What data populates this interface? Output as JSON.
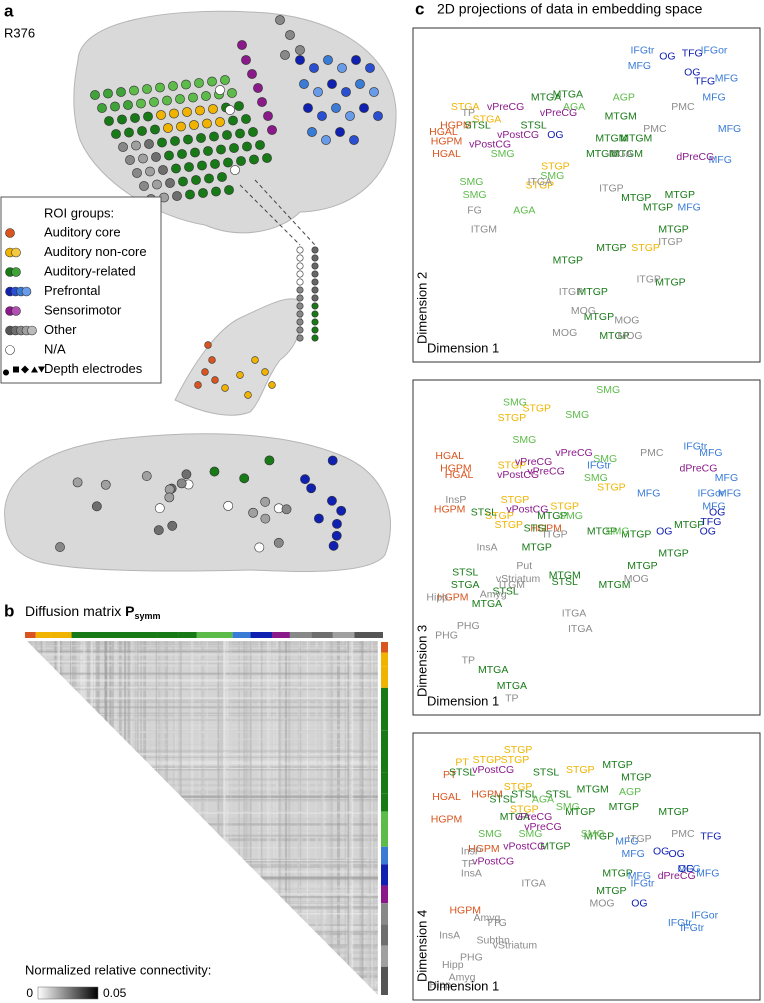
{
  "panel_a": {
    "letter": "a",
    "subject": "R376",
    "legend_title": "ROI groups:",
    "legend": [
      {
        "label": "Auditory core",
        "colors": [
          "#d9541e"
        ]
      },
      {
        "label": "Auditory non-core",
        "colors": [
          "#f0b400",
          "#f5c842"
        ]
      },
      {
        "label": "Auditory-related",
        "colors": [
          "#177a17",
          "#3fa33a"
        ]
      },
      {
        "label": "Prefrontal",
        "colors": [
          "#1020b0",
          "#2a4fd0",
          "#3a7bd5",
          "#6a9be8"
        ]
      },
      {
        "label": "Sensorimotor",
        "colors": [
          "#8a1a8a",
          "#b050b0"
        ]
      },
      {
        "label": "Other",
        "colors": [
          "#555555",
          "#6e6e6e",
          "#888888",
          "#a0a0a0",
          "#bbbbbb"
        ]
      },
      {
        "label": "N/A",
        "colors": [
          "#ffffff"
        ]
      },
      {
        "label": "Depth electrodes",
        "colors": [
          "#000000"
        ]
      }
    ]
  },
  "panel_b": {
    "letter": "b",
    "title": "Diffusion matrix",
    "symbol": "P",
    "subscript": "symm",
    "colorbar_label": "Normalized relative connectivity:",
    "colorbar_ticks": [
      0,
      0.05
    ]
  },
  "panel_c": {
    "letter": "c",
    "title": "2D projections of data in embedding space"
  },
  "chart_data": [
    {
      "type": "scatter",
      "xlabel": "Dimension 1",
      "ylabel": "Dimension 2",
      "xlim": [
        0,
        100
      ],
      "ylim": [
        0,
        100
      ],
      "series": [
        {
          "color": "#d9541e",
          "labels": [
            "HGAL",
            "HGPM",
            "HGAL",
            "HGPM"
          ],
          "x": [
            4,
            5,
            5,
            8
          ],
          "y": [
            70,
            67,
            63,
            72
          ]
        },
        {
          "color": "#f0b400",
          "labels": [
            "STGA",
            "STGP",
            "STGP",
            "STGA",
            "STGP"
          ],
          "x": [
            11,
            35,
            69,
            18,
            40
          ],
          "y": [
            78,
            53,
            33,
            74,
            59
          ]
        },
        {
          "color": "#177a17",
          "labels": [
            "MTGA",
            "MTGM",
            "MTGM",
            "MTGM",
            "MTGP",
            "MTGP",
            "MTGP",
            "MTGP",
            "MTGP",
            "MTGP",
            "MTGP",
            "MTGP",
            "MTGP",
            "STSL",
            "STSL",
            "MTGA",
            "MTGM",
            "MTGM",
            "MTGP"
          ],
          "x": [
            37,
            61,
            63,
            58,
            80,
            73,
            78,
            58,
            44,
            77,
            52,
            54,
            59,
            15,
            33,
            44,
            66,
            55,
            66
          ],
          "y": [
            81,
            75,
            63,
            68,
            50,
            46,
            39,
            33,
            29,
            22,
            19,
            11,
            5,
            72,
            72,
            82,
            68,
            63,
            49
          ]
        },
        {
          "color": "#5dbb4a",
          "labels": [
            "AGA",
            "SMG",
            "SMG",
            "SMG",
            "AGA",
            "AGP",
            "SMG"
          ],
          "x": [
            46,
            13,
            14,
            39,
            30,
            62,
            23
          ],
          "y": [
            78,
            54,
            50,
            56,
            45,
            81,
            63
          ]
        },
        {
          "color": "#3a7bd5",
          "labels": [
            "IFGtr",
            "MFG",
            "MFG",
            "MFG",
            "MFG",
            "MFG",
            "MFG",
            "IFGor"
          ],
          "x": [
            68,
            67,
            91,
            96,
            93,
            83,
            95,
            91
          ],
          "y": [
            96,
            91,
            81,
            71,
            61,
            46,
            87,
            96
          ]
        },
        {
          "color": "#1020b0",
          "labels": [
            "OG",
            "TFG",
            "TFG",
            "OG",
            "OG"
          ],
          "x": [
            76,
            84,
            88,
            84,
            40
          ],
          "y": [
            94,
            95,
            86,
            89,
            69
          ]
        },
        {
          "color": "#8a1a8a",
          "labels": [
            "vPreCG",
            "vPostCG",
            "vPreCG",
            "vPostCG",
            "dPreCG"
          ],
          "x": [
            41,
            19,
            24,
            28,
            85
          ],
          "y": [
            76,
            66,
            78,
            69,
            62
          ]
        },
        {
          "color": "#8c8c8c",
          "labels": [
            "PMC",
            "PMC",
            "FG",
            "ITGM",
            "ITGA",
            "ITGP",
            "ITGP",
            "ITGP",
            "ITGP",
            "MOG",
            "MOG",
            "MOG",
            "MOG",
            "TP",
            "ITGA"
          ],
          "x": [
            81,
            72,
            14,
            17,
            35,
            58,
            77,
            70,
            45,
            49,
            43,
            64,
            63,
            12,
            61
          ],
          "y": [
            78,
            71,
            45,
            39,
            54,
            52,
            35,
            23,
            19,
            13,
            6,
            5,
            10,
            76,
            63
          ]
        }
      ]
    },
    {
      "type": "scatter",
      "xlabel": "Dimension 1",
      "ylabel": "Dimension 3",
      "xlim": [
        0,
        100
      ],
      "ylim": [
        0,
        100
      ],
      "series": [
        {
          "color": "#d9541e",
          "labels": [
            "HGAL",
            "HGPM",
            "HGAL",
            "HGPM",
            "HGPM",
            "HGPM"
          ],
          "x": [
            6,
            8,
            9,
            6,
            7,
            37
          ],
          "y": [
            79,
            75,
            73,
            62,
            34,
            56
          ]
        },
        {
          "color": "#f0b400",
          "labels": [
            "STGP",
            "STGP",
            "STGP",
            "STGP",
            "STGP",
            "STGP",
            "STGP",
            "STGP"
          ],
          "x": [
            34,
            26,
            26,
            27,
            58,
            43,
            25,
            22
          ],
          "y": [
            94,
            91,
            76,
            65,
            69,
            63,
            57,
            60
          ]
        },
        {
          "color": "#177a17",
          "labels": [
            "STSL",
            "STSL",
            "STSL",
            "STGA",
            "STSL",
            "MTGA",
            "MTGA",
            "MTGA",
            "MTGP",
            "MTGP",
            "MTGP",
            "MTGM",
            "MTGM",
            "STSL",
            "MTGP",
            "MTGP",
            "MTGP",
            "MTGP"
          ],
          "x": [
            17,
            34,
            11,
            11,
            24,
            18,
            26,
            20,
            55,
            66,
            78,
            59,
            43,
            43,
            68,
            83,
            34,
            39
          ],
          "y": [
            61,
            56,
            42,
            38,
            36,
            32,
            6,
            11,
            55,
            54,
            48,
            38,
            41,
            39,
            44,
            57,
            50,
            60
          ]
        },
        {
          "color": "#5dbb4a",
          "labels": [
            "SMG",
            "SMG",
            "SMG",
            "SMG",
            "SMG",
            "SMG",
            "SMG",
            "SMG"
          ],
          "x": [
            57,
            27,
            47,
            30,
            56,
            53,
            60,
            45
          ],
          "y": [
            100,
            96,
            92,
            84,
            78,
            72,
            55,
            60
          ]
        },
        {
          "color": "#3a7bd5",
          "labels": [
            "IFGtr",
            "MFG",
            "MFG",
            "IFGor",
            "MFG",
            "MFG",
            "IFGtr",
            "MFG"
          ],
          "x": [
            85,
            90,
            95,
            90,
            70,
            96,
            54,
            91
          ],
          "y": [
            82,
            80,
            72,
            67,
            67,
            67,
            76,
            63
          ]
        },
        {
          "color": "#1020b0",
          "labels": [
            "TFG",
            "OG",
            "OG",
            "OG"
          ],
          "x": [
            90,
            75,
            92,
            89
          ],
          "y": [
            58,
            55,
            61,
            55
          ]
        },
        {
          "color": "#8a1a8a",
          "labels": [
            "vPreCG",
            "vPostCG",
            "vPreCG",
            "vPreCG",
            "vPostCG",
            "dPreCG"
          ],
          "x": [
            33,
            28,
            46,
            37,
            31,
            86
          ],
          "y": [
            77,
            73,
            80,
            74,
            62,
            75
          ]
        },
        {
          "color": "#8c8c8c",
          "labels": [
            "PMC",
            "InsA",
            "InsP",
            "Put",
            "vStriatum",
            "Amyg",
            "Hipp",
            "PHG",
            "PHG",
            "TP",
            "TP",
            "ITGA",
            "ITGA",
            "ITGP",
            "MOG",
            "ITGM"
          ],
          "x": [
            71,
            18,
            8,
            30,
            28,
            20,
            2,
            12,
            5,
            12,
            26,
            46,
            48,
            40,
            66,
            26
          ],
          "y": [
            80,
            50,
            65,
            44,
            40,
            35,
            34,
            25,
            22,
            14,
            2,
            29,
            24,
            54,
            40,
            38
          ]
        }
      ]
    },
    {
      "type": "scatter",
      "xlabel": "Dimension 1",
      "ylabel": "Dimension 4",
      "xlim": [
        0,
        100
      ],
      "ylim": [
        0,
        100
      ],
      "series": [
        {
          "color": "#d9541e",
          "labels": [
            "HGAL",
            "HGPM",
            "HGPM",
            "HGPM",
            "HGPM",
            "PT"
          ],
          "x": [
            5,
            18,
            5,
            17,
            11,
            6
          ],
          "y": [
            78,
            79,
            69,
            57,
            32,
            87
          ]
        },
        {
          "color": "#f0b400",
          "labels": [
            "STGP",
            "STGP",
            "STGP",
            "STGP",
            "STGP",
            "PT",
            "STGP"
          ],
          "x": [
            28,
            27,
            18,
            48,
            30,
            10,
            28
          ],
          "y": [
            97,
            93,
            93,
            89,
            73,
            92,
            82
          ]
        },
        {
          "color": "#177a17",
          "labels": [
            "STSL",
            "STSL",
            "STSL",
            "STSL",
            "MTGA",
            "MTGP",
            "MTGP",
            "MTGP",
            "MTGP",
            "MTGP",
            "MTGP",
            "MTGP",
            "MTGP",
            "MTGP",
            "MTGM",
            "STSL"
          ],
          "x": [
            10,
            37,
            30,
            23,
            27,
            60,
            66,
            62,
            78,
            48,
            54,
            40,
            58,
            60,
            52,
            41
          ],
          "y": [
            88,
            88,
            79,
            77,
            70,
            91,
            86,
            74,
            72,
            72,
            62,
            58,
            40,
            47,
            81,
            79
          ]
        },
        {
          "color": "#5dbb4a",
          "labels": [
            "AGP",
            "SMG",
            "SMG",
            "SMG",
            "SMG",
            "AGA"
          ],
          "x": [
            64,
            44,
            19,
            32,
            52,
            36
          ],
          "y": [
            80,
            74,
            63,
            63,
            63,
            77
          ]
        },
        {
          "color": "#3a7bd5",
          "labels": [
            "MFG",
            "MFG",
            "MFG",
            "MFG",
            "IFGor",
            "IFGtr",
            "IFGtr",
            "MFG",
            "IFGtr"
          ],
          "x": [
            65,
            83,
            89,
            67,
            88,
            80,
            84,
            63,
            68
          ],
          "y": [
            55,
            49,
            47,
            46,
            30,
            27,
            25,
            60,
            43
          ]
        },
        {
          "color": "#1020b0",
          "labels": [
            "OG",
            "TFG",
            "OG",
            "OG",
            "OG"
          ],
          "x": [
            79,
            90,
            82,
            67,
            74
          ],
          "y": [
            55,
            62,
            49,
            35,
            56
          ]
        },
        {
          "color": "#8a1a8a",
          "labels": [
            "vPostCG",
            "vPreCG",
            "vPostCG",
            "vPostCG",
            "dPreCG",
            "vPreCG"
          ],
          "x": [
            20,
            33,
            30,
            20,
            79,
            36
          ],
          "y": [
            89,
            70,
            58,
            52,
            46,
            66
          ]
        },
        {
          "color": "#8c8c8c",
          "labels": [
            "InsP",
            "TP",
            "InsA",
            "ITGA",
            "MOG",
            "PMC",
            "InsA",
            "Amyg",
            "TTG",
            "Subthn",
            "vStriatum",
            "Hipp",
            "PHG",
            "Amyg",
            "Hipp",
            "ITGP"
          ],
          "x": [
            13,
            12,
            13,
            33,
            55,
            81,
            6,
            18,
            21,
            20,
            27,
            7,
            13,
            10,
            3,
            67
          ],
          "y": [
            56,
            51,
            47,
            43,
            35,
            63,
            22,
            29,
            27,
            20,
            18,
            10,
            13,
            5,
            2,
            61
          ]
        }
      ]
    }
  ]
}
